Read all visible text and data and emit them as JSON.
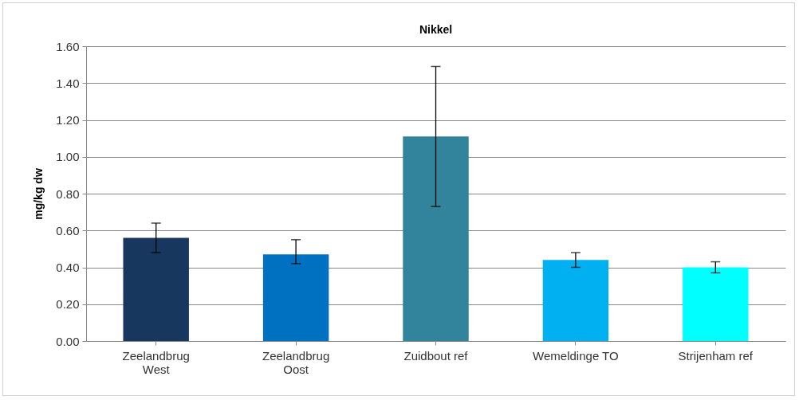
{
  "chart_data": {
    "type": "bar",
    "title": "Nikkel",
    "ylabel": "mg/kg dw",
    "categories": [
      "Zeelandbrug West",
      "Zeelandbrug Oost",
      "Zuidbout ref",
      "Wemeldinge TO",
      "Strijenham ref"
    ],
    "values": [
      0.56,
      0.47,
      1.11,
      0.44,
      0.4
    ],
    "colors": [
      "#17375e",
      "#0070c0",
      "#31849b",
      "#00b0f0",
      "#00ffff"
    ],
    "errors": [
      [
        0.48,
        0.64
      ],
      [
        0.42,
        0.55
      ],
      [
        0.73,
        1.49
      ],
      [
        0.4,
        0.48
      ],
      [
        0.37,
        0.43
      ]
    ],
    "ylim": [
      0,
      1.6
    ],
    "yticks": [
      {
        "value": 0,
        "label": "0.00"
      },
      {
        "value": 0.2,
        "label": "0.20"
      },
      {
        "value": 0.4,
        "label": "0.40"
      },
      {
        "value": 0.6,
        "label": "0.60"
      },
      {
        "value": 0.8,
        "label": "0.80"
      },
      {
        "value": 1.0,
        "label": "1.00"
      },
      {
        "value": 1.2,
        "label": "1.20"
      },
      {
        "value": 1.4,
        "label": "1.40"
      },
      {
        "value": 1.6,
        "label": "1.60"
      }
    ],
    "grid": "y"
  }
}
